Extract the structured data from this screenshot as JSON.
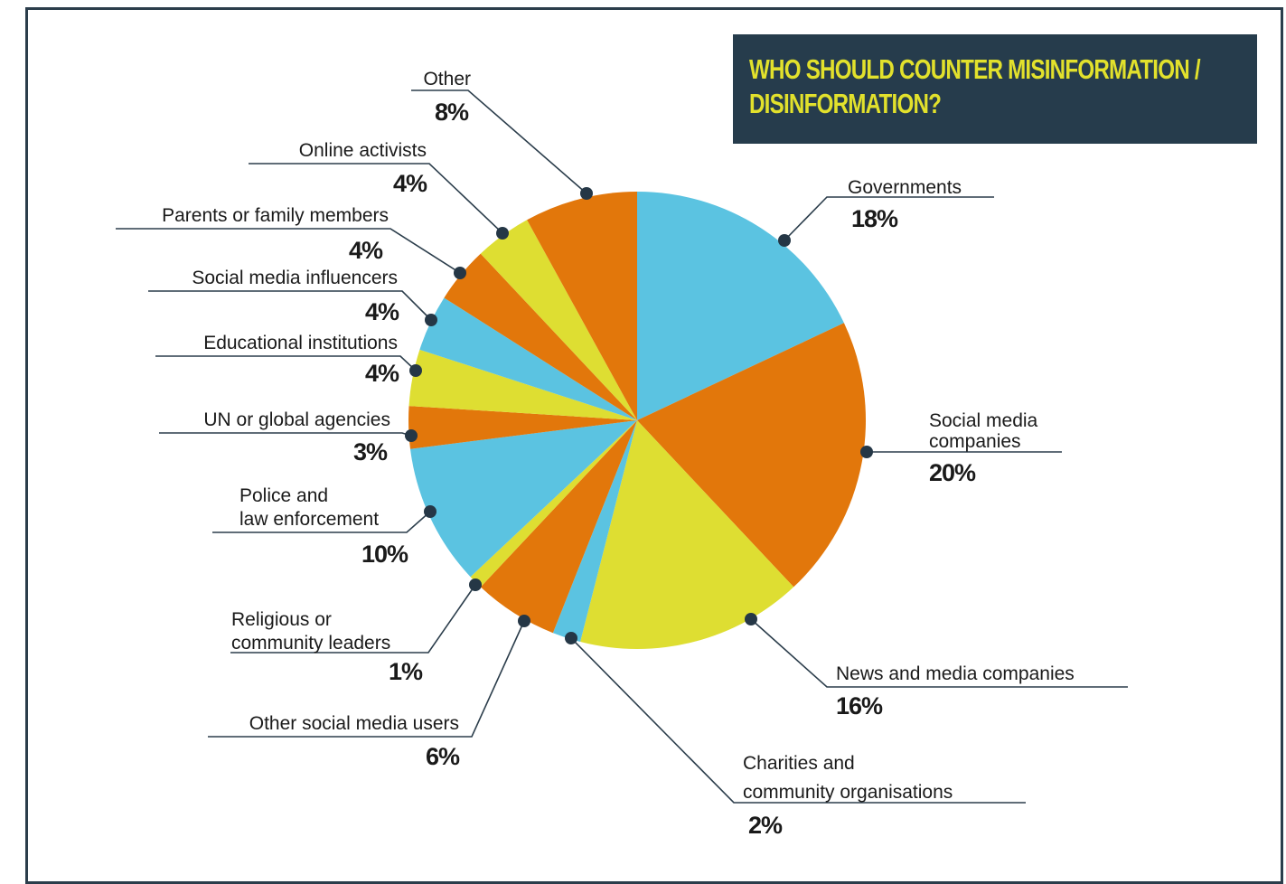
{
  "chart_data": {
    "type": "pie",
    "title": "WHO SHOULD COUNTER MISINFORMATION / DISINFORMATION?",
    "slices": [
      {
        "label": "Governments",
        "value": 18,
        "value_label": "18%",
        "color": "#5bc3e1"
      },
      {
        "label": "Social media companies",
        "lines": [
          "Social media",
          "companies"
        ],
        "value": 20,
        "value_label": "20%",
        "color": "#e2770b"
      },
      {
        "label": "News and media companies",
        "value": 16,
        "value_label": "16%",
        "color": "#dede32"
      },
      {
        "label": "Charities and community organisations",
        "lines": [
          "Charities and",
          "community organisations"
        ],
        "value": 2,
        "value_label": "2%",
        "color": "#5bc3e1"
      },
      {
        "label": "Other social media users",
        "value": 6,
        "value_label": "6%",
        "color": "#e2770b"
      },
      {
        "label": "Religious or community leaders",
        "lines": [
          "Religious or",
          "community leaders"
        ],
        "value": 1,
        "value_label": "1%",
        "color": "#dede32"
      },
      {
        "label": "Police and law enforcement",
        "lines": [
          "Police and",
          "law enforcement"
        ],
        "value": 10,
        "value_label": "10%",
        "color": "#5bc3e1"
      },
      {
        "label": "UN or global agencies",
        "value": 3,
        "value_label": "3%",
        "color": "#e2770b"
      },
      {
        "label": "Educational institutions",
        "value": 4,
        "value_label": "4%",
        "color": "#dede32"
      },
      {
        "label": "Social media influencers",
        "value": 4,
        "value_label": "4%",
        "color": "#5bc3e1"
      },
      {
        "label": "Parents or family members",
        "value": 4,
        "value_label": "4%",
        "color": "#e2770b"
      },
      {
        "label": "Online activists",
        "value": 4,
        "value_label": "4%",
        "color": "#dede32"
      },
      {
        "label": "Other",
        "value": 8,
        "value_label": "8%",
        "color": "#e2770b"
      }
    ]
  }
}
